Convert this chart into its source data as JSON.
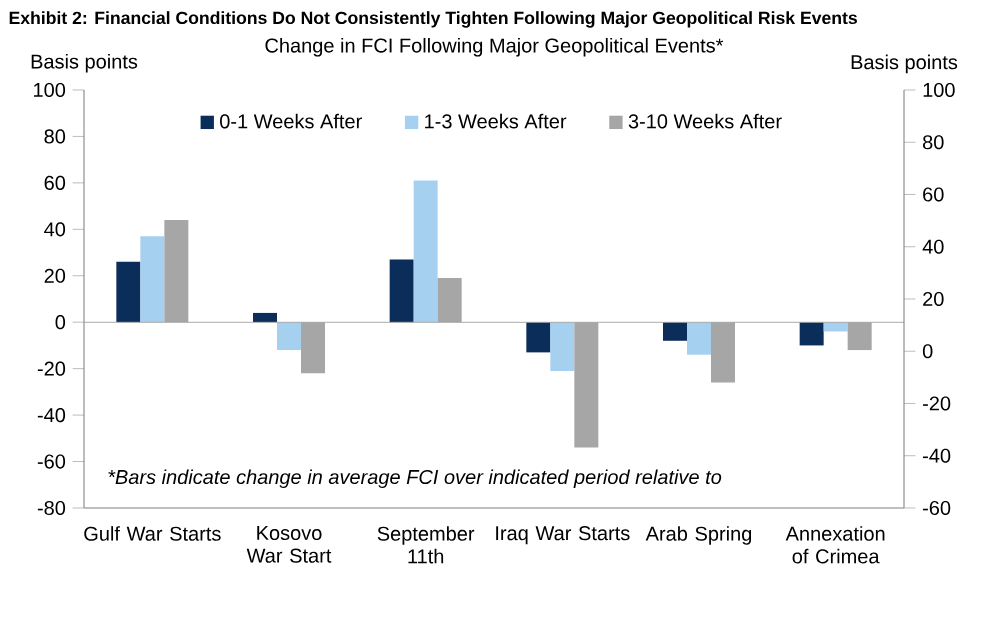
{
  "chart_data": {
    "type": "bar",
    "title": "Exhibit 2: Financial Conditions Do Not Consistently Tighten Following Major Geopolitical Risk Events",
    "subtitle": "Change in FCI Following Major Geopolitical Events*",
    "ylabel": "Basis points",
    "y2label": "Basis points",
    "categories": [
      "Gulf War Starts",
      "Kosovo War Start",
      "September 11th",
      "Iraq War Starts",
      "Arab Spring",
      "Annexation of Crimea"
    ],
    "series": [
      {
        "name": "0-1 Weeks After",
        "color": "#0b2d5a",
        "values": [
          26,
          4,
          27,
          -13,
          -8,
          -10
        ]
      },
      {
        "name": "1-3 Weeks After",
        "color": "#a6d0f0",
        "values": [
          37,
          -12,
          61,
          -21,
          -14,
          -4
        ]
      },
      {
        "name": "3-10 Weeks After",
        "color": "#a6a6a6",
        "values": [
          44,
          -22,
          19,
          -54,
          -26,
          -12
        ]
      }
    ],
    "ylim": [
      -80,
      100
    ],
    "yticks": [
      -80,
      -60,
      -40,
      -20,
      0,
      20,
      40,
      60,
      80,
      100
    ],
    "y2lim": [
      -60,
      100
    ],
    "y2ticks": [
      -60,
      -40,
      -20,
      0,
      20,
      40,
      60,
      80,
      100
    ],
    "annotations": [
      "*Bars indicate change in average FCI over indicated period relative to"
    ],
    "ref_lines": [
      {
        "axis": "y",
        "value": 0,
        "color": "#a6a6a6"
      }
    ],
    "grid": false,
    "legend": "top"
  }
}
